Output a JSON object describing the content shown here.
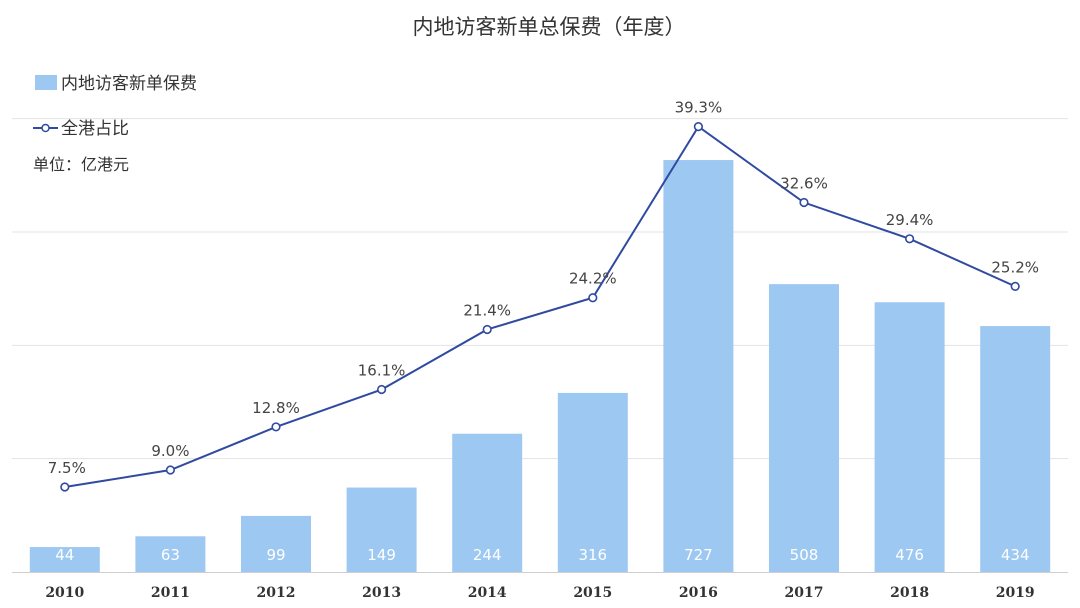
{
  "chart_data": {
    "type": "bar",
    "title": "内地访客新单总保费（年度）",
    "unit": "单位：亿港元",
    "categories": [
      "2010",
      "2011",
      "2012",
      "2013",
      "2014",
      "2015",
      "2016",
      "2017",
      "2018",
      "2019"
    ],
    "series": [
      {
        "name": "内地访客新单保费",
        "type": "bar",
        "color": "#9dc8f1",
        "values": [
          44,
          63,
          99,
          149,
          244,
          316,
          727,
          508,
          476,
          434
        ]
      },
      {
        "name": "全港占比",
        "type": "line",
        "color": "#2f4aa0",
        "values": [
          7.5,
          9.0,
          12.8,
          16.1,
          21.4,
          24.2,
          39.3,
          32.6,
          29.4,
          25.2
        ],
        "labels": [
          "7.5%",
          "9.0%",
          "12.8%",
          "16.1%",
          "21.4%",
          "24.2%",
          "39.3%",
          "32.6%",
          "29.4%",
          "25.2%"
        ]
      }
    ],
    "ylim": [
      0,
      900
    ],
    "y2lim": [
      0,
      45
    ],
    "grid": true,
    "legend_position": "top-left"
  }
}
